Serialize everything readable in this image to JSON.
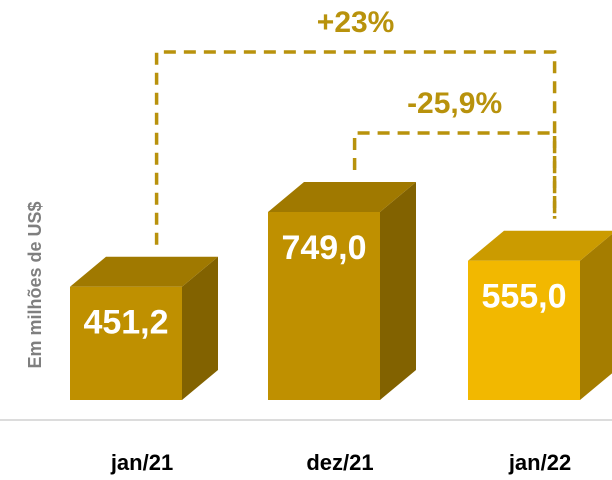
{
  "chart_data": {
    "type": "bar3d",
    "y_axis_label": "Em milhões de US$",
    "categories": [
      "jan/21",
      "dez/21",
      "jan/22"
    ],
    "values": [
      451.2,
      749.0,
      555.0
    ],
    "value_labels": [
      "451,2",
      "749,0",
      "555,0"
    ],
    "colors": [
      "#BF9000",
      "#BF9000",
      "#F2B800"
    ],
    "annotations": [
      {
        "text": "+23%",
        "from": 0,
        "to": 2
      },
      {
        "text": "-25,9%",
        "from": 1,
        "to": 2
      }
    ],
    "annotation_color": "#B8920C"
  }
}
